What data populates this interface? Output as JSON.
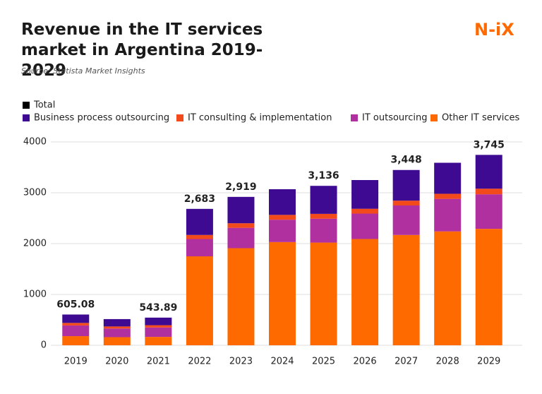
{
  "chart_data": {
    "type": "stacked_bar",
    "title": "Revenue in the IT services market in Argentina 2019-2029",
    "source": "Source: Statista Market Insights",
    "logo": "N-iX",
    "categories": [
      "2019",
      "2020",
      "2021",
      "2022",
      "2023",
      "2024",
      "2025",
      "2026",
      "2027",
      "2028",
      "2029"
    ],
    "series": [
      {
        "name": "Total",
        "color": "#000000",
        "stack": false,
        "values": [
          605.08,
          null,
          543.89,
          2683,
          2919,
          null,
          3136,
          null,
          3448,
          null,
          3745
        ],
        "value_labels": [
          "605.08",
          null,
          "543.89",
          "2,683",
          "2,919",
          null,
          "3,136",
          null,
          "3,448",
          null,
          "3,745"
        ]
      },
      {
        "name": "Business process outsourcing",
        "color": "#3d0a91",
        "values": [
          165,
          145,
          149,
          513,
          519,
          505,
          551,
          565,
          603,
          610,
          665
        ]
      },
      {
        "name": "IT consulting & implementation",
        "color": "#f24a1a",
        "values": [
          50,
          40,
          45,
          80,
          90,
          95,
          95,
          95,
          95,
          100,
          110
        ]
      },
      {
        "name": "IT outsourcing",
        "color": "#b0309f",
        "values": [
          210,
          170,
          185,
          340,
          400,
          440,
          470,
          500,
          580,
          640,
          680
        ]
      },
      {
        "name": "Other IT services",
        "color": "#ff6a00",
        "values": [
          180,
          160,
          165,
          1750,
          1910,
          2030,
          2020,
          2090,
          2170,
          2240,
          2290
        ]
      }
    ],
    "ylim": [
      0,
      4000
    ],
    "yticks": [
      0,
      1000,
      2000,
      3000,
      4000
    ],
    "grid": true
  }
}
